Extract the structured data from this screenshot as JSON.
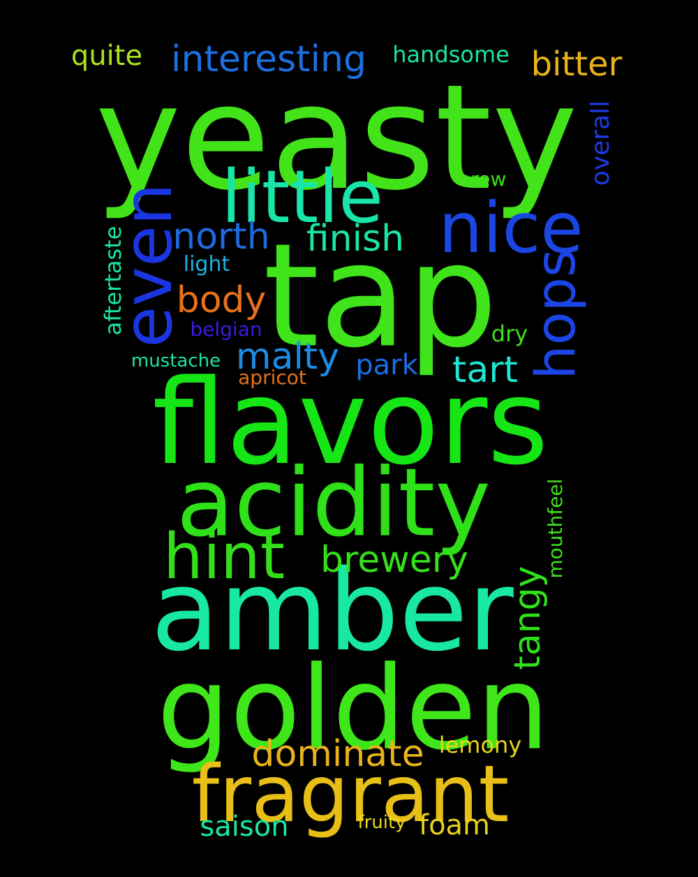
{
  "words": [
    {
      "text": "yeasty",
      "color": "#43e31a"
    },
    {
      "text": "tap",
      "color": "#3fe41b"
    },
    {
      "text": "flavors",
      "color": "#16e615"
    },
    {
      "text": "acidity",
      "color": "#2fe118"
    },
    {
      "text": "amber",
      "color": "#19e8a5"
    },
    {
      "text": "golden",
      "color": "#3fe61a"
    },
    {
      "text": "fragrant",
      "color": "#e8bf16"
    },
    {
      "text": "little",
      "color": "#19e5a8"
    },
    {
      "text": "nice",
      "color": "#1b46e3"
    },
    {
      "text": "even",
      "color": "#1b36e1"
    },
    {
      "text": "hint",
      "color": "#35de1a"
    },
    {
      "text": "hops",
      "color": "#1b45e6"
    },
    {
      "text": "interesting",
      "color": "#1d6fe0"
    },
    {
      "text": "bitter",
      "color": "#e8b318"
    },
    {
      "text": "quite",
      "color": "#a8e320"
    },
    {
      "text": "handsome",
      "color": "#1ae6a0"
    },
    {
      "text": "north",
      "color": "#1d6ae0"
    },
    {
      "text": "finish",
      "color": "#1ae6a8"
    },
    {
      "text": "body",
      "color": "#e8721b"
    },
    {
      "text": "malty",
      "color": "#1b8de8"
    },
    {
      "text": "park",
      "color": "#1b6ee3"
    },
    {
      "text": "tart",
      "color": "#1de6d2"
    },
    {
      "text": "brewery",
      "color": "#35e01a"
    },
    {
      "text": "tangy",
      "color": "#2fe11b"
    },
    {
      "text": "dominate",
      "color": "#e8b31a"
    },
    {
      "text": "lemony",
      "color": "#e8d61b"
    },
    {
      "text": "saison",
      "color": "#1be6a6"
    },
    {
      "text": "fruity",
      "color": "#e8d81b"
    },
    {
      "text": "foam",
      "color": "#e8d21b"
    },
    {
      "text": "overall",
      "color": "#1d3be3"
    },
    {
      "text": "brew",
      "color": "#3fe11b"
    },
    {
      "text": "aftertaste",
      "color": "#1ae6a0"
    },
    {
      "text": "light",
      "color": "#1bb3e6"
    },
    {
      "text": "belgian",
      "color": "#3a1be3"
    },
    {
      "text": "dry",
      "color": "#3fe11b"
    },
    {
      "text": "mustache",
      "color": "#1ae6a0"
    },
    {
      "text": "apricot",
      "color": "#e8721b"
    },
    {
      "text": "mouthfeel",
      "color": "#3fe11b"
    }
  ]
}
